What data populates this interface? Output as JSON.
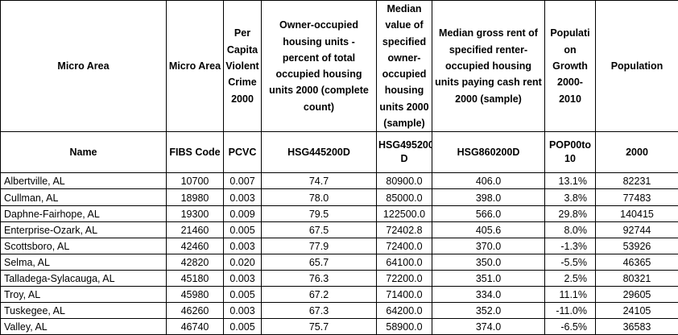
{
  "header_labels": [
    "Micro Area",
    "Micro Area",
    "Per Capita Violent Crime 2000",
    "Owner-occupied housing units - percent of total occupied housing units 2000 (complete count)",
    "Median value of specified owner-occupied housing units 2000 (sample)",
    "Median gross rent of specified renter-occupied housing units paying cash rent 2000 (sample)",
    "Populati on Growth 2000-2010",
    "Population"
  ],
  "code_labels": [
    "Name",
    "FIBS Code",
    "PCVC",
    "HSG445200D",
    "HSG495200 D",
    "HSG860200D",
    "POP00to 10",
    "2000"
  ],
  "rows": [
    [
      "Albertville, AL",
      "10700",
      "0.007",
      "74.7",
      "80900.0",
      "406.0",
      "13.1%",
      "82231"
    ],
    [
      "Cullman, AL",
      "18980",
      "0.003",
      "78.0",
      "85000.0",
      "398.0",
      "3.8%",
      "77483"
    ],
    [
      "Daphne-Fairhope, AL",
      "19300",
      "0.009",
      "79.5",
      "122500.0",
      "566.0",
      "29.8%",
      "140415"
    ],
    [
      "Enterprise-Ozark, AL",
      "21460",
      "0.005",
      "67.5",
      "72402.8",
      "405.6",
      "8.0%",
      "92744"
    ],
    [
      "Scottsboro, AL",
      "42460",
      "0.003",
      "77.9",
      "72400.0",
      "370.0",
      "-1.3%",
      "53926"
    ],
    [
      "Selma, AL",
      "42820",
      "0.020",
      "65.7",
      "64100.0",
      "350.0",
      "-5.5%",
      "46365"
    ],
    [
      "Talladega-Sylacauga, AL",
      "45180",
      "0.003",
      "76.3",
      "72200.0",
      "351.0",
      "2.5%",
      "80321"
    ],
    [
      "Troy, AL",
      "45980",
      "0.005",
      "67.2",
      "71400.0",
      "334.0",
      "11.1%",
      "29605"
    ],
    [
      "Tuskegee, AL",
      "46260",
      "0.003",
      "67.3",
      "64200.0",
      "352.0",
      "-11.0%",
      "24105"
    ],
    [
      "Valley, AL",
      "46740",
      "0.005",
      "75.7",
      "58900.0",
      "374.0",
      "-6.5%",
      "36583"
    ]
  ]
}
